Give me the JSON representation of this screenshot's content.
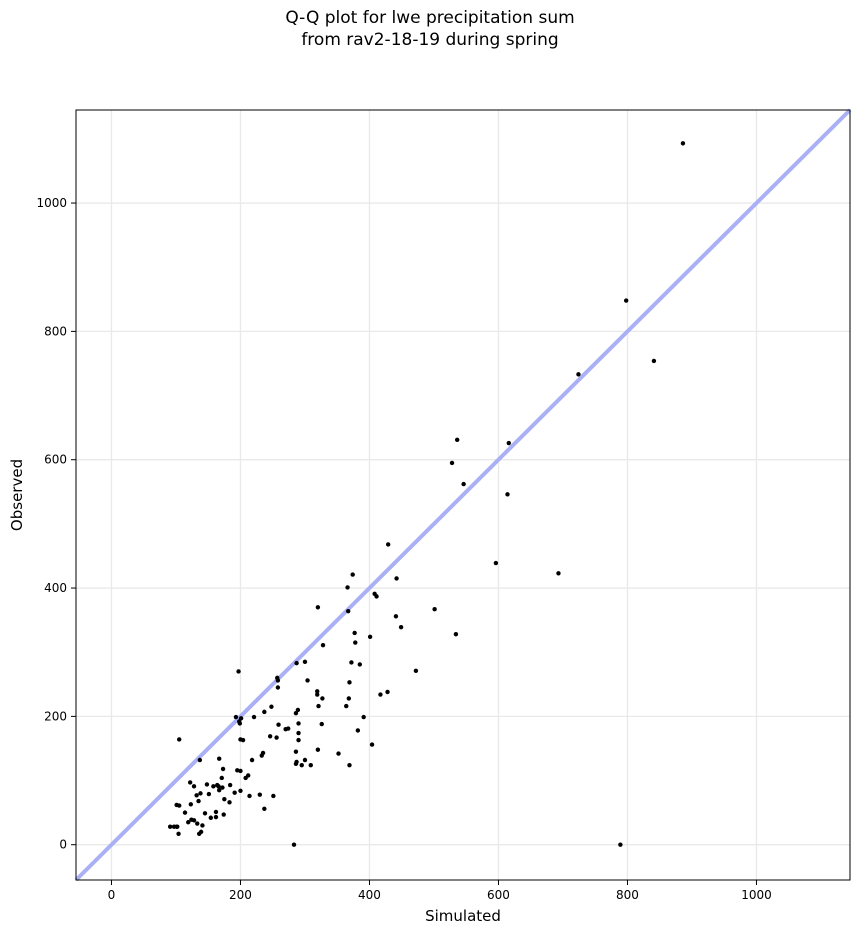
{
  "chart_data": {
    "type": "scatter",
    "title_line1": "Q-Q plot for lwe precipitation sum",
    "title_line2": "from rav2-18-19 during spring",
    "xlabel": "Simulated",
    "ylabel": "Observed",
    "xlim": [
      -55,
      1145
    ],
    "ylim": [
      -55,
      1145
    ],
    "xticks": [
      0,
      200,
      400,
      600,
      800,
      1000
    ],
    "yticks": [
      0,
      200,
      400,
      600,
      800,
      1000
    ],
    "grid": true,
    "reference_line": {
      "from": [
        -55,
        -55
      ],
      "to": [
        1145,
        1145
      ],
      "color": "#aab0f5"
    },
    "point_color": "#000000",
    "points": [
      [
        886,
        1093
      ],
      [
        798,
        848
      ],
      [
        841,
        754
      ],
      [
        724,
        733
      ],
      [
        536,
        631
      ],
      [
        616,
        626
      ],
      [
        528,
        595
      ],
      [
        546,
        562
      ],
      [
        614,
        546
      ],
      [
        596,
        439
      ],
      [
        693,
        423
      ],
      [
        429,
        468
      ],
      [
        374,
        421
      ],
      [
        442,
        415
      ],
      [
        366,
        401
      ],
      [
        408,
        391
      ],
      [
        411,
        387
      ],
      [
        501,
        367
      ],
      [
        367,
        364
      ],
      [
        441,
        356
      ],
      [
        449,
        339
      ],
      [
        377,
        330
      ],
      [
        534,
        328
      ],
      [
        401,
        324
      ],
      [
        378,
        315
      ],
      [
        328,
        311
      ],
      [
        320,
        370
      ],
      [
        197,
        270
      ],
      [
        472,
        271
      ],
      [
        300,
        285
      ],
      [
        287,
        283
      ],
      [
        385,
        281
      ],
      [
        372,
        284
      ],
      [
        428,
        238
      ],
      [
        417,
        234
      ],
      [
        319,
        239
      ],
      [
        319,
        234
      ],
      [
        257,
        260
      ],
      [
        258,
        256
      ],
      [
        258,
        245
      ],
      [
        304,
        256
      ],
      [
        369,
        253
      ],
      [
        368,
        228
      ],
      [
        327,
        228
      ],
      [
        364,
        216
      ],
      [
        321,
        216
      ],
      [
        248,
        215
      ],
      [
        289,
        210
      ],
      [
        286,
        205
      ],
      [
        237,
        207
      ],
      [
        221,
        199
      ],
      [
        193,
        199
      ],
      [
        201,
        197
      ],
      [
        198,
        192
      ],
      [
        199,
        189
      ],
      [
        391,
        199
      ],
      [
        326,
        188
      ],
      [
        259,
        187
      ],
      [
        290,
        189
      ],
      [
        246,
        169
      ],
      [
        256,
        167
      ],
      [
        200,
        164
      ],
      [
        204,
        163
      ],
      [
        290,
        163
      ],
      [
        274,
        181
      ],
      [
        270,
        180
      ],
      [
        290,
        174
      ],
      [
        286,
        145
      ],
      [
        320,
        148
      ],
      [
        235,
        143
      ],
      [
        404,
        156
      ],
      [
        382,
        178
      ],
      [
        105,
        164
      ],
      [
        352,
        142
      ],
      [
        300,
        132
      ],
      [
        295,
        124
      ],
      [
        287,
        129
      ],
      [
        286,
        126
      ],
      [
        309,
        124
      ],
      [
        369,
        124
      ],
      [
        218,
        132
      ],
      [
        137,
        132
      ],
      [
        233,
        139
      ],
      [
        167,
        134
      ],
      [
        173,
        118
      ],
      [
        195,
        116
      ],
      [
        200,
        115
      ],
      [
        171,
        104
      ],
      [
        208,
        104
      ],
      [
        212,
        108
      ],
      [
        122,
        97
      ],
      [
        128,
        91
      ],
      [
        148,
        94
      ],
      [
        164,
        93
      ],
      [
        158,
        91
      ],
      [
        166,
        91
      ],
      [
        184,
        93
      ],
      [
        172,
        89
      ],
      [
        167,
        85
      ],
      [
        200,
        84
      ],
      [
        138,
        80
      ],
      [
        132,
        77
      ],
      [
        151,
        79
      ],
      [
        191,
        81
      ],
      [
        230,
        78
      ],
      [
        251,
        76
      ],
      [
        214,
        76
      ],
      [
        175,
        71
      ],
      [
        135,
        68
      ],
      [
        183,
        66
      ],
      [
        123,
        63
      ],
      [
        101,
        62
      ],
      [
        105,
        61
      ],
      [
        237,
        56
      ],
      [
        114,
        50
      ],
      [
        162,
        51
      ],
      [
        145,
        49
      ],
      [
        174,
        47
      ],
      [
        154,
        42
      ],
      [
        162,
        43
      ],
      [
        124,
        39
      ],
      [
        128,
        38
      ],
      [
        119,
        35
      ],
      [
        133,
        33
      ],
      [
        141,
        30
      ],
      [
        91,
        28
      ],
      [
        97,
        28
      ],
      [
        101,
        28
      ],
      [
        102,
        28
      ],
      [
        139,
        20
      ],
      [
        136,
        17
      ],
      [
        104,
        17
      ],
      [
        283,
        0
      ],
      [
        789,
        0
      ]
    ]
  }
}
